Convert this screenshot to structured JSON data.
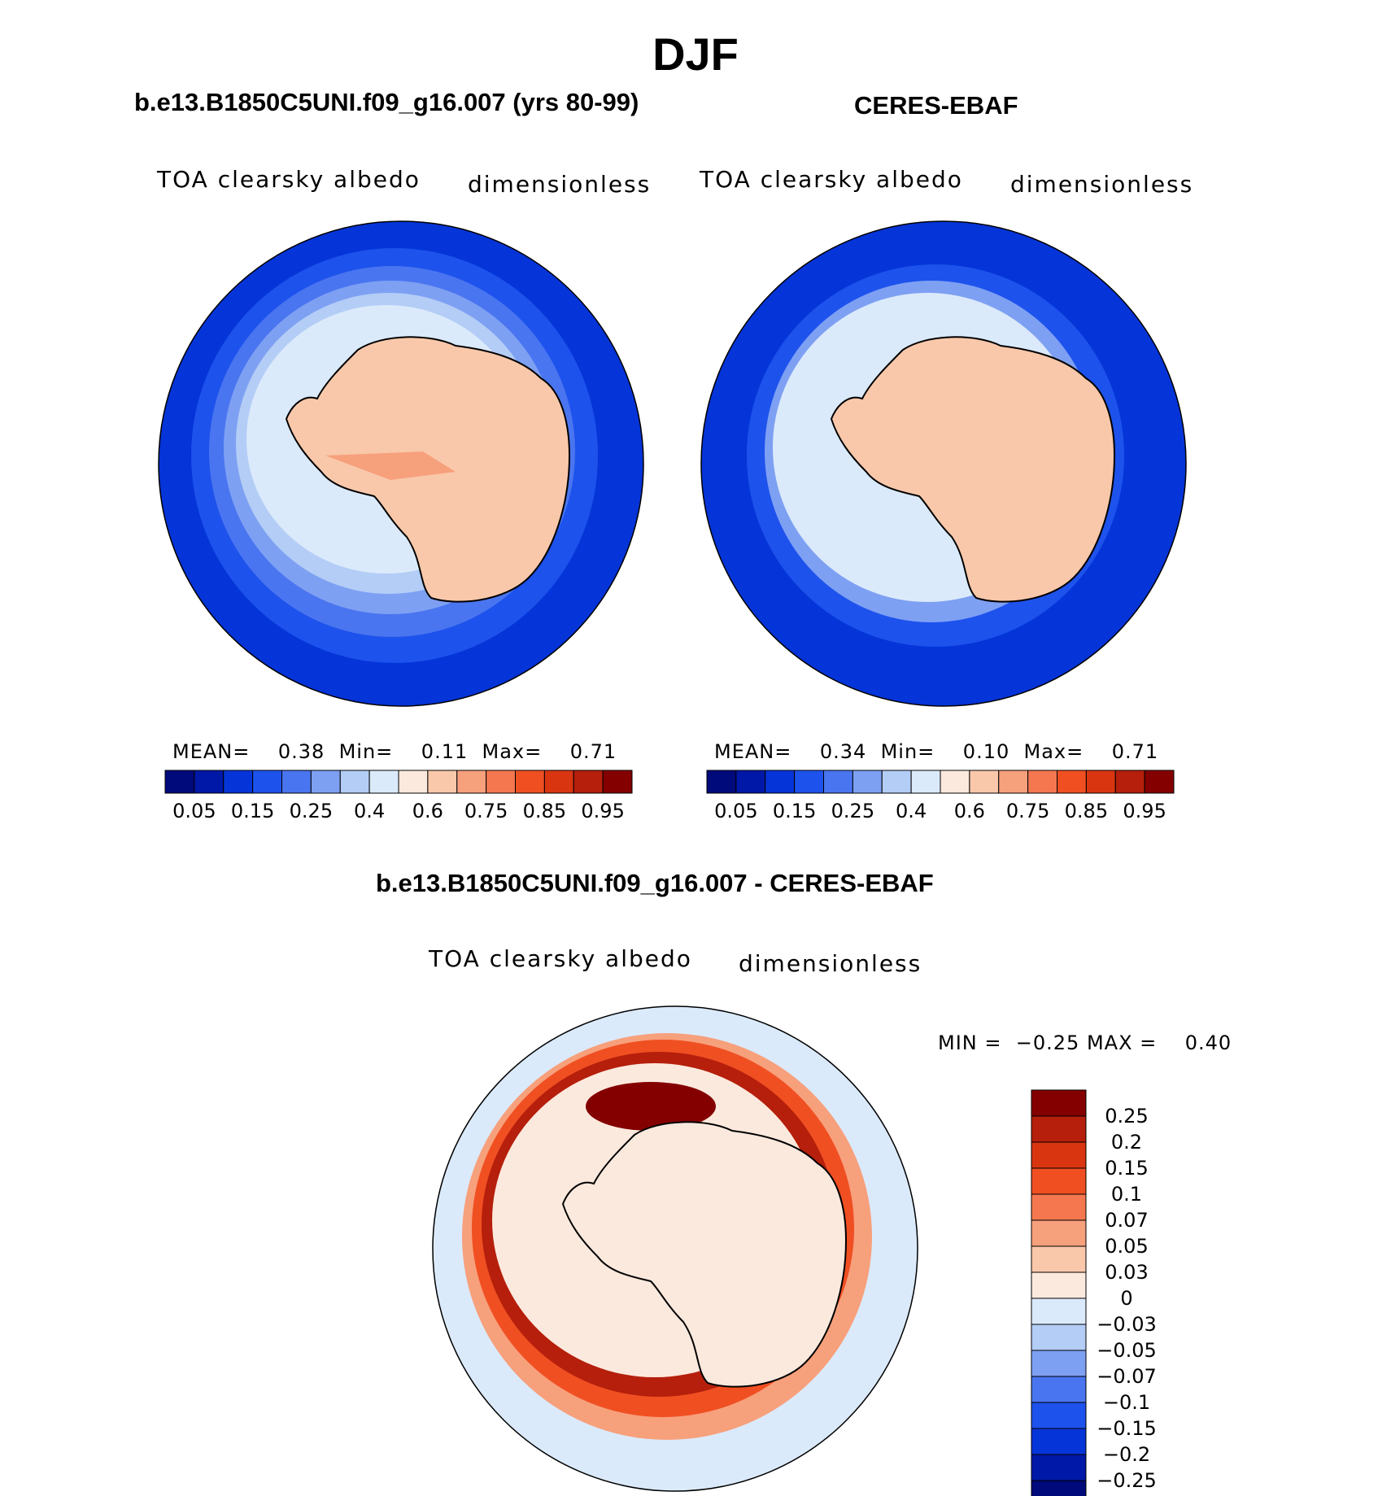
{
  "title": "DJF",
  "panel_left": {
    "title": "b.e13.B1850C5UNI.f09_g16.007 (yrs 80-99)",
    "var_name": "TOA clearsky albedo",
    "units": "dimensionless",
    "mean_label": "MEAN=",
    "mean_value": "0.38",
    "min_label": "Min=",
    "min_value": "0.11",
    "max_label": "Max=",
    "max_value": "0.71"
  },
  "panel_right": {
    "title": "CERES-EBAF",
    "var_name": "TOA clearsky albedo",
    "units": "dimensionless",
    "mean_label": "MEAN=",
    "mean_value": "0.34",
    "min_label": "Min=",
    "min_value": "0.10",
    "max_label": "Max=",
    "max_value": "0.71"
  },
  "panel_diff": {
    "title": "b.e13.B1850C5UNI.f09_g16.007 - CERES-EBAF",
    "var_name": "TOA clearsky albedo",
    "units": "dimensionless",
    "min_label": "MIN =",
    "min_value": "−0.25",
    "max_label": "MAX =",
    "max_value": "0.40"
  },
  "abs_colorbar": {
    "colors": [
      "#000a7a",
      "#0018a8",
      "#0535d8",
      "#1d52ec",
      "#4a75f0",
      "#7ea0f3",
      "#b3cdf6",
      "#dbeafb",
      "#fce9dd",
      "#f9c8ab",
      "#f7a07c",
      "#f57750",
      "#f04f22",
      "#d93511",
      "#b51f0b",
      "#840000"
    ],
    "labels": [
      "0.05",
      "0.15",
      "0.25",
      "0.4",
      "0.6",
      "0.75",
      "0.85",
      "0.95"
    ]
  },
  "diff_colorbar": {
    "colors": [
      "#840000",
      "#b51f0b",
      "#d93511",
      "#f04f22",
      "#f57750",
      "#f7a07c",
      "#f9c8ab",
      "#fce9dd",
      "#dbeafb",
      "#b3cdf6",
      "#7ea0f3",
      "#4a75f0",
      "#1d52ec",
      "#0535d8",
      "#0018a8",
      "#000a7a"
    ],
    "labels": [
      "0.25",
      "0.2",
      "0.15",
      "0.1",
      "0.07",
      "0.05",
      "0.03",
      "0",
      "−0.03",
      "−0.05",
      "−0.07",
      "−0.1",
      "−0.15",
      "−0.2",
      "−0.25"
    ]
  },
  "map_colors": {
    "ocean_deep": "#0535d8",
    "ocean_mid": "#1d52ec",
    "band_a": "#4a75f0",
    "band_b": "#7ea0f3",
    "band_c": "#b3cdf6",
    "band_d": "#dbeafb",
    "land": "#f9c8ab",
    "land_high": "#f7a07c",
    "diff_bg": "#dbeafb",
    "diff_light": "#fce9dd",
    "diff_r1": "#f7a07c",
    "diff_r2": "#f04f22",
    "diff_r3": "#b51f0b",
    "diff_r4": "#840000"
  }
}
